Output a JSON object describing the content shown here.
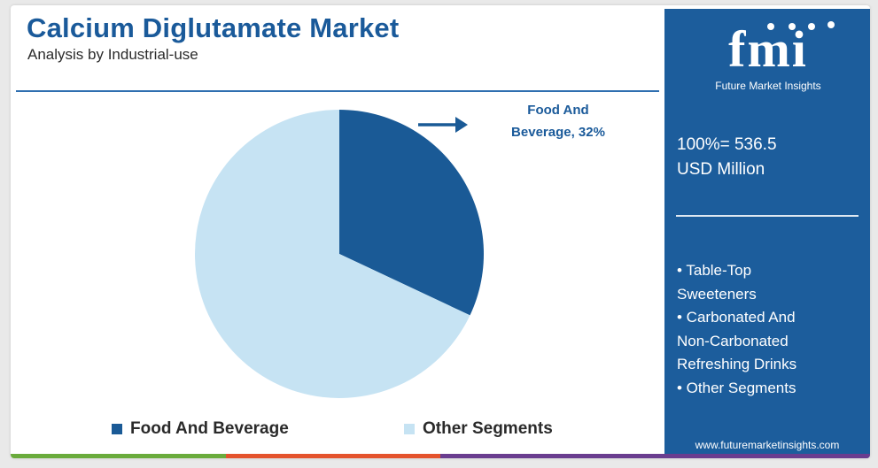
{
  "header": {
    "title": "Calcium Diglutamate Market",
    "subtitle": "Analysis by Industrial-use"
  },
  "chart_data": {
    "type": "pie",
    "categories": [
      "Food And Beverage",
      "Other Segments"
    ],
    "values": [
      32,
      68
    ],
    "colors": [
      "#1a5a96",
      "#c6e3f3"
    ],
    "start_angle": "12 o'clock",
    "direction": "clockwise",
    "annotations": [
      {
        "text": "Food And\nBeverage, 32%",
        "target": "Food And Beverage",
        "arrow": "right-pointing"
      }
    ],
    "legend_position": "bottom"
  },
  "callout": {
    "text": "Food And\nBeverage, 32%"
  },
  "legend": {
    "items": [
      {
        "label": "Food And Beverage",
        "color": "#1a5a96"
      },
      {
        "label": "Other Segments",
        "color": "#c6e3f3"
      }
    ]
  },
  "side": {
    "logo_text": "fmi",
    "logo_caption": "Future Market Insights",
    "total_line1": "100%= 536.5",
    "total_line2": "USD Million",
    "segments": [
      "• Table-Top\nSweeteners",
      "• Carbonated And\nNon-Carbonated\nRefreshing Drinks",
      "• Other Segments"
    ],
    "website": "www.futuremarketinsights.com"
  },
  "colors": {
    "title": "#1a5a9a",
    "side_panel": "#1c5d9c",
    "bottom_bar": [
      "#6aab3c",
      "#e4532d",
      "#6a3d8f"
    ]
  },
  "icons": [
    "arrow-right-icon"
  ]
}
